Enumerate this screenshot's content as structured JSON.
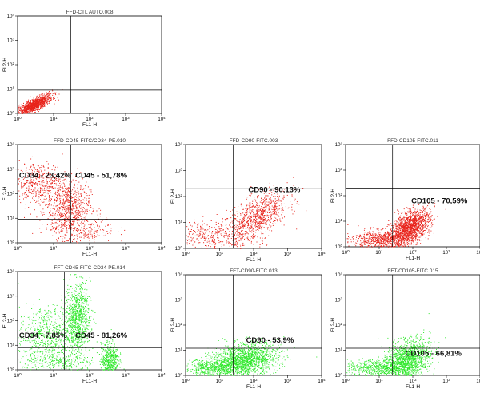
{
  "chart_data": [
    {
      "type": "scatter",
      "title": "FFD-CTL AUTO.008",
      "xlabel": "FL1-H",
      "ylabel": "FL2-H",
      "xscale": "log",
      "yscale": "log",
      "xlim": [
        1,
        10000
      ],
      "ylim": [
        1,
        10000
      ],
      "gate": [
        30,
        9
      ],
      "color": "#e8231b",
      "annotations": [],
      "clusters": [
        {
          "cx": 0.45,
          "cy": 0.35,
          "sx": 0.25,
          "sy": 0.22,
          "n": 1100,
          "rho": 0.8
        }
      ]
    },
    {
      "type": "scatter",
      "title": "FFD-CD45-FITC/CD34-PE.010",
      "xlabel": "FL1-H",
      "ylabel": "FL2-H",
      "xscale": "log",
      "yscale": "log",
      "xlim": [
        1,
        10000
      ],
      "ylim": [
        1,
        10000
      ],
      "gate": [
        30,
        9
      ],
      "color": "#e8231b",
      "annotations": [
        {
          "text": "CD34 - 23,42%",
          "x": 1.1,
          "y": 450
        },
        {
          "text": "CD45 - 51,78%",
          "x": 40,
          "y": 450
        }
      ],
      "clusters": [
        {
          "cx": 1.4,
          "cy": 1.4,
          "sx": 0.3,
          "sy": 0.55,
          "n": 650,
          "rho": 0.1
        },
        {
          "cx": 0.6,
          "cy": 2.4,
          "sx": 0.4,
          "sy": 0.45,
          "n": 500,
          "rho": 0.0
        },
        {
          "cx": 1.8,
          "cy": 0.6,
          "sx": 0.45,
          "sy": 0.3,
          "n": 250,
          "rho": 0.0
        }
      ]
    },
    {
      "type": "scatter",
      "title": "FFD-CD90-FITC.003",
      "xlabel": "FL1-H",
      "ylabel": "FL2-H",
      "xscale": "log",
      "yscale": "log",
      "xlim": [
        1,
        10000
      ],
      "ylim": [
        1,
        10000
      ],
      "gate": [
        25,
        200
      ],
      "color": "#e8231b",
      "annotations": [
        {
          "text": "CD90 - 90,13%",
          "x": 70,
          "y": 150
        }
      ],
      "clusters": [
        {
          "cx": 2.1,
          "cy": 1.2,
          "sx": 0.45,
          "sy": 0.5,
          "n": 900,
          "rho": 0.6
        },
        {
          "cx": 0.8,
          "cy": 0.5,
          "sx": 0.6,
          "sy": 0.3,
          "n": 350,
          "rho": 0.0
        }
      ]
    },
    {
      "type": "scatter",
      "title": "FFD-CD105-FITC.011",
      "xlabel": "FL1-H",
      "ylabel": "FL2-H",
      "xscale": "log",
      "yscale": "log",
      "xlim": [
        1,
        10000
      ],
      "ylim": [
        1,
        10000
      ],
      "gate": [
        25,
        200
      ],
      "color": "#e8231b",
      "annotations": [
        {
          "text": "CD105 - 70,59%",
          "x": 90,
          "y": 50
        }
      ],
      "clusters": [
        {
          "cx": 1.9,
          "cy": 0.75,
          "sx": 0.3,
          "sy": 0.35,
          "n": 1500,
          "rho": 0.5
        },
        {
          "cx": 1.0,
          "cy": 0.3,
          "sx": 0.4,
          "sy": 0.18,
          "n": 600,
          "rho": 0.0
        }
      ]
    },
    {
      "type": "scatter",
      "title": "FFT-CD45-FITC-CD34-PE.014",
      "xlabel": "FL1-H",
      "ylabel": "FL2-H",
      "xscale": "log",
      "yscale": "log",
      "xlim": [
        1,
        10000
      ],
      "ylim": [
        1,
        10000
      ],
      "gate": [
        20,
        8
      ],
      "color": "#2ee82a",
      "annotations": [
        {
          "text": "CD34 - 7,85%",
          "x": 1.1,
          "y": 20
        },
        {
          "text": "CD45 - 81,26%",
          "x": 40,
          "y": 20
        }
      ],
      "clusters": [
        {
          "cx": 1.65,
          "cy": 2.1,
          "sx": 0.18,
          "sy": 0.7,
          "n": 900,
          "rho": 0.0
        },
        {
          "cx": 0.8,
          "cy": 1.4,
          "sx": 0.4,
          "sy": 0.6,
          "n": 600,
          "rho": 0.0
        },
        {
          "cx": 2.55,
          "cy": 0.4,
          "sx": 0.12,
          "sy": 0.35,
          "n": 500,
          "rho": 0.0
        },
        {
          "cx": 1.2,
          "cy": 0.3,
          "sx": 0.5,
          "sy": 0.2,
          "n": 250,
          "rho": 0.0
        }
      ]
    },
    {
      "type": "scatter",
      "title": "FFT-CD90-FITC.013",
      "xlabel": "FL1-H",
      "ylabel": "FL2-H",
      "xscale": "log",
      "yscale": "log",
      "xlim": [
        1,
        10000
      ],
      "ylim": [
        1,
        10000
      ],
      "gate": [
        25,
        12
      ],
      "color": "#2ee82a",
      "annotations": [
        {
          "text": "CD90 - 53,9%",
          "x": 60,
          "y": 20
        }
      ],
      "clusters": [
        {
          "cx": 1.7,
          "cy": 0.6,
          "sx": 0.5,
          "sy": 0.35,
          "n": 1700,
          "rho": 0.3
        },
        {
          "cx": 0.8,
          "cy": 0.3,
          "sx": 0.45,
          "sy": 0.18,
          "n": 500,
          "rho": 0.0
        }
      ]
    },
    {
      "type": "scatter",
      "title": "FFT-CD105-FITC.015",
      "xlabel": "FL1-H",
      "ylabel": "FL2-H",
      "xscale": "log",
      "yscale": "log",
      "xlim": [
        1,
        10000
      ],
      "ylim": [
        1,
        10000
      ],
      "gate": [
        25,
        12
      ],
      "color": "#2ee82a",
      "annotations": [
        {
          "text": "CD105 - 66,81%",
          "x": 60,
          "y": 6
        }
      ],
      "clusters": [
        {
          "cx": 1.8,
          "cy": 0.6,
          "sx": 0.35,
          "sy": 0.4,
          "n": 1500,
          "rho": 0.35
        },
        {
          "cx": 0.9,
          "cy": 0.3,
          "sx": 0.45,
          "sy": 0.18,
          "n": 500,
          "rho": 0.0
        }
      ]
    }
  ]
}
